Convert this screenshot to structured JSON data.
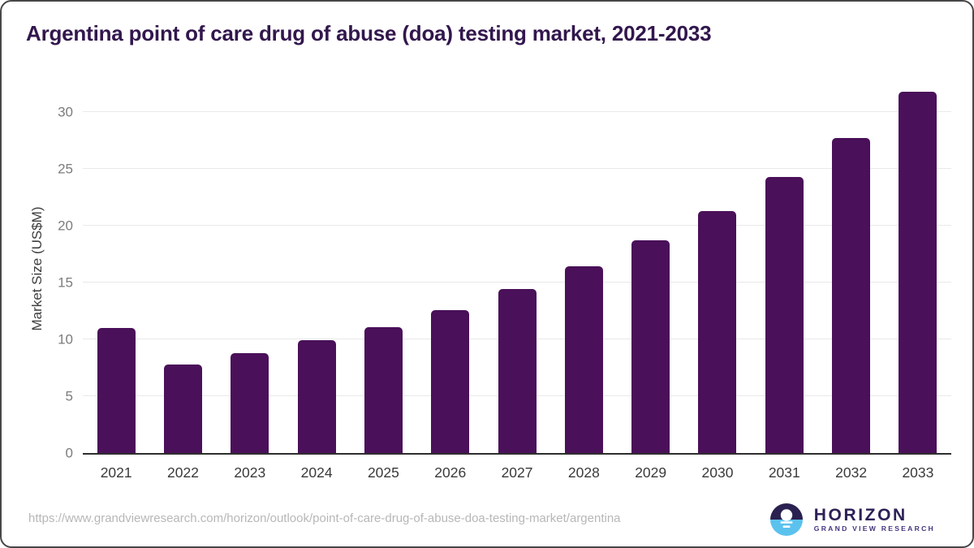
{
  "page": {
    "title": "Argentina point of care drug of abuse (doa) testing market, 2021-2033"
  },
  "chart_data": {
    "type": "bar",
    "title": "Argentina point of care drug of abuse (doa) testing market, 2021-2033",
    "categories": [
      "2021",
      "2022",
      "2023",
      "2024",
      "2025",
      "2026",
      "2027",
      "2028",
      "2029",
      "2030",
      "2031",
      "2032",
      "2033"
    ],
    "values": [
      11.0,
      7.8,
      8.8,
      9.9,
      11.1,
      12.6,
      14.4,
      16.4,
      18.7,
      21.3,
      24.3,
      27.7,
      31.8
    ],
    "xlabel": "",
    "ylabel": "Market Size (US$M)",
    "yticks": [
      0,
      5,
      10,
      15,
      20,
      25,
      30
    ],
    "ylim": [
      0,
      32.7
    ],
    "grid": true,
    "legend": "none",
    "bar_color": "#4A1059"
  },
  "footer": {
    "source_url": "https://www.grandviewresearch.com/horizon/outlook/point-of-care-drug-of-abuse-doa-testing-market/argentina",
    "logo": {
      "name": "HORIZON",
      "subtitle": "GRAND VIEW RESEARCH",
      "icon": "sun-over-water-icon",
      "dark_color": "#2A2150",
      "light_color": "#5BC2EE"
    }
  },
  "colors": {
    "title": "#32174D",
    "bar": "#4A1059",
    "gridline": "#e9e9e9",
    "axis_line": "#2e2e2e",
    "ytick_label": "#7c7c7c",
    "xtick_label": "#3a3a3a",
    "url_text": "#b7b7b7"
  }
}
